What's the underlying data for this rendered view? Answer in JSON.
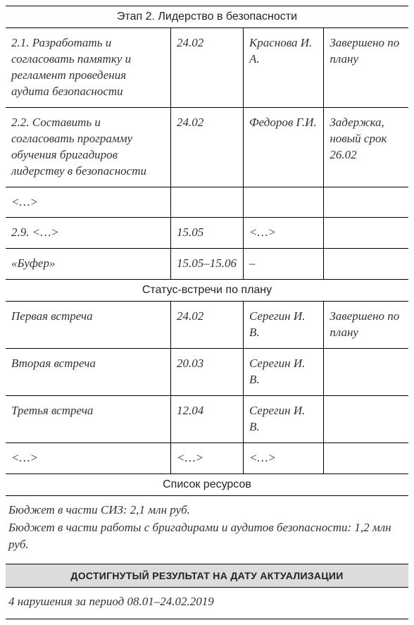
{
  "sections": {
    "stage2": {
      "title": "Этап 2. Лидерство в безопасности",
      "columns": {
        "task_w": "41%",
        "date_w": "18%",
        "person_w": "20%",
        "status_w": "21%"
      },
      "rows": [
        {
          "task": "2.1. Разработать и согласовать памятку и регламент проведения аудита безопасности",
          "date": "24.02",
          "person": "Крас­нова И. А.",
          "status": "Завершено по плану"
        },
        {
          "task": "2.2. Составить и согласовать программу обучения бригадиров лидерству в безопасности",
          "date": "24.02",
          "person": "Федоров Г.И.",
          "status": "Задержка, новый срок 26.02"
        },
        {
          "task": "<…>",
          "date": "",
          "person": "",
          "status": ""
        },
        {
          "task": "2.9. <…>",
          "date": "15.05",
          "person": "<…>",
          "status": ""
        },
        {
          "task": "«Буфер»",
          "date": "15.05–15.06",
          "person": "–",
          "status": ""
        }
      ]
    },
    "meetings": {
      "title": "Статус-встречи по плану",
      "rows": [
        {
          "task": "Первая встреча",
          "date": "24.02",
          "person": "Серегин И. В.",
          "status": "Завершено по плану"
        },
        {
          "task": "Вторая встреча",
          "date": "20.03",
          "person": "Серегин И. В.",
          "status": ""
        },
        {
          "task": "Третья встреча",
          "date": "12.04",
          "person": "Серегин И. В.",
          "status": ""
        },
        {
          "task": "<…>",
          "date": "<…>",
          "person": "<…>",
          "status": ""
        }
      ]
    },
    "resources": {
      "title": "Список ресурсов",
      "line1": "Бюджет в части СИЗ: 2,1 млн руб.",
      "line2": "Бюджет в части работы с бригадирами и аудитов безопасности: 1,2 млн руб."
    },
    "result": {
      "title": "ДОСТИГНУТЫЙ РЕЗУЛЬТАТ НА ДАТУ АКТУАЛИЗАЦИИ",
      "text": "4 нарушения за период 08.01–24.02.2019"
    }
  },
  "style": {
    "border_color": "#000000",
    "header_bg": "#dcdcdc",
    "body_font": "Brush Script MT, Segoe Script, cursive",
    "header_font": "Arial Narrow, Helvetica Condensed, sans-serif",
    "body_fontsize": 17,
    "header_fontsize": 16,
    "result_header_fontsize": 14,
    "text_color": "#333333"
  }
}
